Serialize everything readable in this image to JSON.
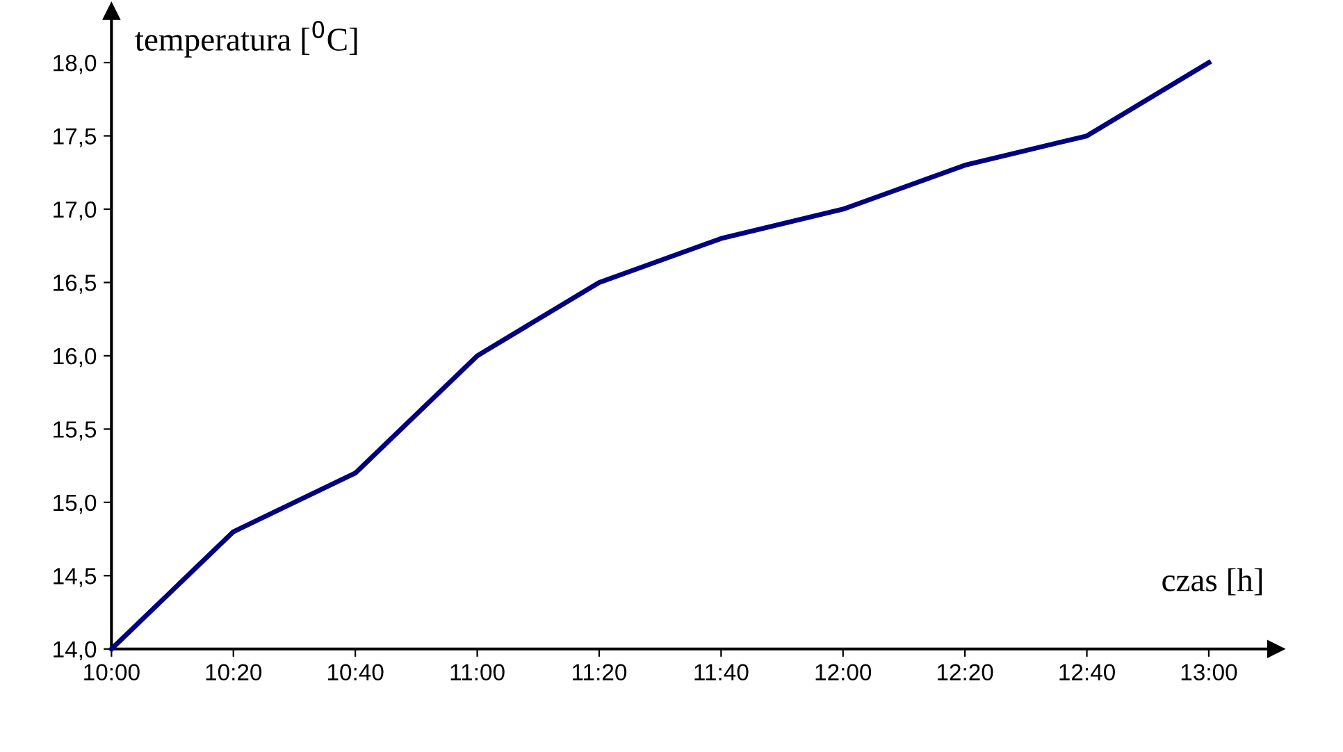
{
  "chart_data": {
    "type": "line",
    "xlabel": "czas [h]",
    "ylabel": "temperatura [$^{0}$C]",
    "categories": [
      "10:00",
      "10:20",
      "10:40",
      "11:00",
      "11:20",
      "11:40",
      "12:00",
      "12:20",
      "12:40",
      "13:00"
    ],
    "series": [
      {
        "color": "#000080",
        "values": [
          14.0,
          14.8,
          15.2,
          16.0,
          16.5,
          16.8,
          17.0,
          17.3,
          17.5,
          18.0
        ]
      }
    ],
    "ylim": [
      14,
      18.35
    ],
    "yticks": [
      {
        "value": 14,
        "label": "14,0"
      },
      {
        "value": 14.5,
        "label": "14,5"
      },
      {
        "value": 15,
        "label": "15,0"
      },
      {
        "value": 15.5,
        "label": "15,5"
      },
      {
        "value": 16,
        "label": "16,0"
      },
      {
        "value": 16.5,
        "label": "16,5"
      },
      {
        "value": 17,
        "label": "17,0"
      },
      {
        "value": 17.5,
        "label": "17,5"
      },
      {
        "value": 18,
        "label": "18,0"
      }
    ],
    "grid": false,
    "legend": false,
    "marker": "none",
    "line_style": "solid"
  }
}
